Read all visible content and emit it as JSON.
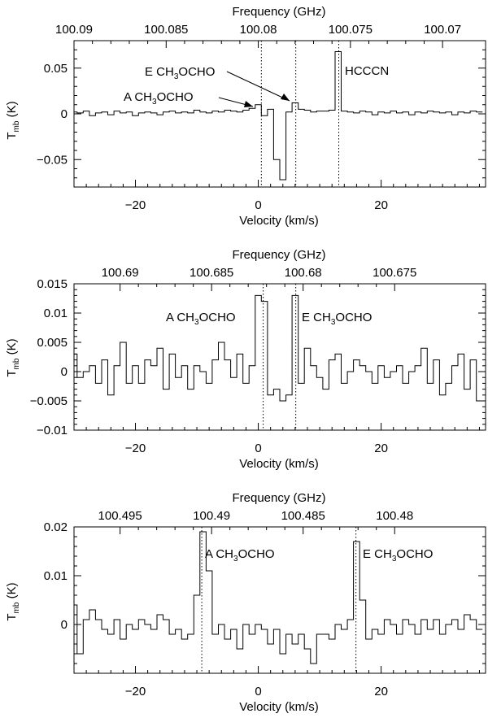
{
  "chart_data": [
    {
      "type": "line",
      "panel": "top",
      "title": "",
      "xlabel": "Velocity (km/s)",
      "ylabel": "T_mb (K)",
      "x2label": "Frequency (GHz)",
      "xlim": [
        -30,
        37
      ],
      "ylim": [
        -0.08,
        0.08
      ],
      "x_ticks": [
        -20,
        0,
        20
      ],
      "x_tick_labels": [
        "−20",
        "0",
        "20"
      ],
      "y_ticks": [
        -0.05,
        0,
        0.05
      ],
      "y_tick_labels": [
        "−0.05",
        "0",
        "0.05"
      ],
      "freq_ticks": [
        {
          "label": "100.09",
          "v": -30
        },
        {
          "label": "100.085",
          "v": -15.0
        },
        {
          "label": "100.08",
          "v": 0.0
        },
        {
          "label": "100.075",
          "v": 15.0
        },
        {
          "label": "100.07",
          "v": 30.0
        }
      ],
      "markers": [
        0.5,
        6.1,
        13.1
      ],
      "grid": false,
      "step": 1.0,
      "series": [
        {
          "x": [
            -30,
            -29,
            -28,
            -27,
            -26,
            -25,
            -24,
            -23,
            -22,
            -21,
            -20,
            -19,
            -18,
            -17,
            -16,
            -15,
            -14,
            -13,
            -12,
            -11,
            -10,
            -9,
            -8,
            -7,
            -6,
            -5,
            -4,
            -3,
            -2,
            -1,
            0,
            1,
            2,
            3,
            4,
            5,
            6,
            7,
            8,
            9,
            10,
            11,
            12,
            13,
            14,
            15,
            16,
            17,
            18,
            19,
            20,
            21,
            22,
            23,
            24,
            25,
            26,
            27,
            28,
            29,
            30,
            31,
            32,
            33,
            34,
            35,
            36
          ],
          "y": [
            0.002,
            0.001,
            0.003,
            -0.002,
            0.001,
            0.002,
            -0.001,
            0.003,
            0.001,
            0.002,
            -0.002,
            0.001,
            0.002,
            0.001,
            -0.001,
            0.002,
            0.003,
            0.001,
            0.002,
            0.001,
            0.004,
            0.002,
            0.001,
            0.003,
            0.002,
            0.004,
            0.003,
            0.002,
            0.004,
            0.006,
            0.01,
            -0.002,
            0.005,
            -0.05,
            -0.072,
            0.002,
            0.012,
            0.005,
            0.004,
            0.002,
            0.003,
            0.003,
            0.004,
            0.068,
            0.003,
            0.002,
            0.001,
            0.003,
            0.002,
            -0.001,
            0.002,
            0.001,
            0.003,
            0.001,
            0.002,
            -0.001,
            0.002,
            0.001,
            0.003,
            0.002,
            0.001,
            0.002,
            -0.001,
            0.002,
            0.001,
            0.003,
            0.002
          ]
        }
      ],
      "annotations": [
        {
          "main": "E CH",
          "sub": "3",
          "tail": "OCHO"
        },
        {
          "main": "A CH",
          "sub": "3",
          "tail": "OCHO"
        },
        {
          "main": "HCCCN",
          "sub": "",
          "tail": ""
        }
      ]
    },
    {
      "type": "line",
      "panel": "middle",
      "title": "",
      "xlabel": "Velocity (km/s)",
      "ylabel": "T_mb (K)",
      "x2label": "Frequency (GHz)",
      "xlim": [
        -30,
        37
      ],
      "ylim": [
        -0.01,
        0.015
      ],
      "x_ticks": [
        -20,
        0,
        20
      ],
      "x_tick_labels": [
        "−20",
        "0",
        "20"
      ],
      "y_ticks": [
        -0.01,
        -0.005,
        0,
        0.005,
        0.01,
        0.015
      ],
      "y_tick_labels": [
        "−0.01",
        "−0.005",
        "0",
        "0.005",
        "0.01",
        "0.015"
      ],
      "freq_ticks": [
        {
          "label": "100.69",
          "v": -22.5
        },
        {
          "label": "100.685",
          "v": -7.6
        },
        {
          "label": "100.68",
          "v": 7.3
        },
        {
          "label": "100.675",
          "v": 22.2
        }
      ],
      "markers": [
        0.8,
        6.1
      ],
      "grid": false,
      "step": 1.0,
      "series": [
        {
          "x": [
            -30,
            -29,
            -28,
            -27,
            -26,
            -25,
            -24,
            -23,
            -22,
            -21,
            -20,
            -19,
            -18,
            -17,
            -16,
            -15,
            -14,
            -13,
            -12,
            -11,
            -10,
            -9,
            -8,
            -7,
            -6,
            -5,
            -4,
            -3,
            -2,
            -1,
            0,
            1,
            2,
            3,
            4,
            5,
            6,
            7,
            8,
            9,
            10,
            11,
            12,
            13,
            14,
            15,
            16,
            17,
            18,
            19,
            20,
            21,
            22,
            23,
            24,
            25,
            26,
            27,
            28,
            29,
            30,
            31,
            32,
            33,
            34,
            35,
            36
          ],
          "y": [
            0.003,
            -0.001,
            0.0,
            0.001,
            -0.002,
            0.002,
            -0.004,
            0.001,
            0.005,
            -0.002,
            0.001,
            -0.002,
            0.002,
            0.001,
            0.004,
            -0.003,
            0.003,
            -0.001,
            0.001,
            -0.003,
            0.001,
            0.0,
            -0.002,
            0.002,
            0.005,
            0.002,
            -0.001,
            0.003,
            -0.002,
            0.001,
            0.013,
            0.012,
            -0.004,
            -0.003,
            -0.005,
            -0.004,
            0.013,
            -0.002,
            0.004,
            0.001,
            -0.001,
            -0.003,
            0.002,
            0.003,
            -0.002,
            0.0,
            0.002,
            0.001,
            0.0,
            -0.002,
            0.001,
            -0.001,
            0.0,
            0.001,
            -0.002,
            0.0,
            0.001,
            0.004,
            -0.002,
            0.002,
            -0.004,
            -0.002,
            0.001,
            0.003,
            -0.003,
            0.002,
            -0.005
          ]
        }
      ],
      "annotations": [
        {
          "main": "A CH",
          "sub": "3",
          "tail": "OCHO"
        },
        {
          "main": "E CH",
          "sub": "3",
          "tail": "OCHO"
        }
      ]
    },
    {
      "type": "line",
      "panel": "bottom",
      "title": "",
      "xlabel": "Velocity (km/s)",
      "ylabel": "T_mb (K)",
      "x2label": "Frequency (GHz)",
      "xlim": [
        -30,
        37
      ],
      "ylim": [
        -0.01,
        0.02
      ],
      "x_ticks": [
        -20,
        0,
        20
      ],
      "x_tick_labels": [
        "−20",
        "0",
        "20"
      ],
      "y_ticks": [
        -0.01,
        0,
        0.01,
        0.02
      ],
      "y_tick_labels": [
        "",
        "0",
        "0.01",
        "0.02"
      ],
      "freq_ticks": [
        {
          "label": "100.495",
          "v": -22.5
        },
        {
          "label": "100.49",
          "v": -7.6
        },
        {
          "label": "100.485",
          "v": 7.3
        },
        {
          "label": "100.48",
          "v": 22.2
        }
      ],
      "markers": [
        -9.2,
        15.9
      ],
      "grid": false,
      "step": 1.0,
      "series": [
        {
          "x": [
            -30,
            -29,
            -28,
            -27,
            -26,
            -25,
            -24,
            -23,
            -22,
            -21,
            -20,
            -19,
            -18,
            -17,
            -16,
            -15,
            -14,
            -13,
            -12,
            -11,
            -10,
            -9,
            -8,
            -7,
            -6,
            -5,
            -4,
            -3,
            -2,
            -1,
            0,
            1,
            2,
            3,
            4,
            5,
            6,
            7,
            8,
            9,
            10,
            11,
            12,
            13,
            14,
            15,
            16,
            17,
            18,
            19,
            20,
            21,
            22,
            23,
            24,
            25,
            26,
            27,
            28,
            29,
            30,
            31,
            32,
            33,
            34,
            35,
            36
          ],
          "y": [
            0.004,
            -0.006,
            0.001,
            0.003,
            0.001,
            -0.001,
            -0.002,
            0.001,
            -0.003,
            0.0,
            -0.001,
            0.001,
            0.0,
            -0.001,
            0.002,
            0.001,
            -0.002,
            -0.001,
            -0.003,
            -0.002,
            0.006,
            0.019,
            0.011,
            -0.002,
            0.0,
            -0.003,
            -0.001,
            -0.005,
            0.0,
            -0.002,
            0.0,
            -0.001,
            -0.004,
            -0.001,
            -0.006,
            -0.002,
            -0.004,
            -0.002,
            -0.005,
            -0.008,
            -0.002,
            -0.002,
            -0.003,
            0.0,
            -0.001,
            0.001,
            0.017,
            0.005,
            -0.003,
            -0.001,
            -0.002,
            0.001,
            0.0,
            -0.002,
            0.001,
            0.0,
            -0.002,
            0.001,
            -0.001,
            0.001,
            -0.002,
            0.0,
            0.001,
            -0.001,
            0.002,
            0.001,
            -0.001
          ]
        }
      ],
      "annotations": [
        {
          "main": "A CH",
          "sub": "3",
          "tail": "OCHO"
        },
        {
          "main": "E CH",
          "sub": "3",
          "tail": "OCHO"
        }
      ]
    }
  ]
}
